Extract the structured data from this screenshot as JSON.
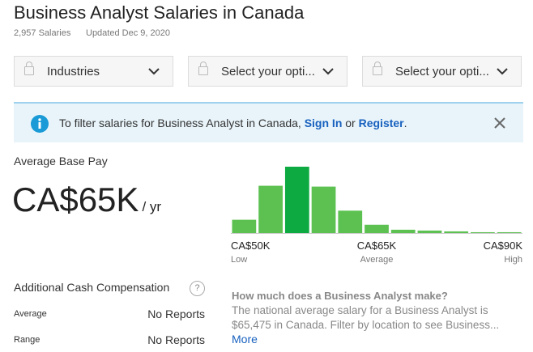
{
  "header": {
    "title": "Business Analyst Salaries in Canada",
    "count": "2,957 Salaries",
    "updated": "Updated Dec 9, 2020"
  },
  "filters": [
    "Industries",
    "Select your opti...",
    "Select your opti..."
  ],
  "banner": {
    "text": "To filter salaries for Business Analyst in Canada,",
    "sign_in": "Sign In",
    "or": "or",
    "register": "Register",
    "end": "."
  },
  "pay": {
    "label": "Average Base Pay",
    "amount": "CA$65K",
    "unit": "/ yr"
  },
  "chart_data": {
    "type": "bar",
    "values": [
      16,
      57,
      80,
      56,
      27,
      10,
      4,
      3,
      2,
      1,
      1
    ],
    "highlight_index": 2,
    "color": "#5cc151",
    "highlight_color": "#0caa41",
    "axis_labels": [
      {
        "amount": "CA$50K",
        "label": "Low"
      },
      {
        "amount": "CA$65K",
        "label": "Average"
      },
      {
        "amount": "CA$90K",
        "label": "High"
      }
    ]
  },
  "additional": {
    "title": "Additional Cash Compensation",
    "help": "?",
    "rows": [
      [
        "Average",
        "No Reports"
      ],
      [
        "Range",
        "No Reports"
      ]
    ]
  },
  "about": {
    "question": "How much does a Business Analyst make?",
    "text": "The national average salary for a Business Analyst is $65,475 in Canada. Filter by location to see Business...",
    "more": "More"
  }
}
